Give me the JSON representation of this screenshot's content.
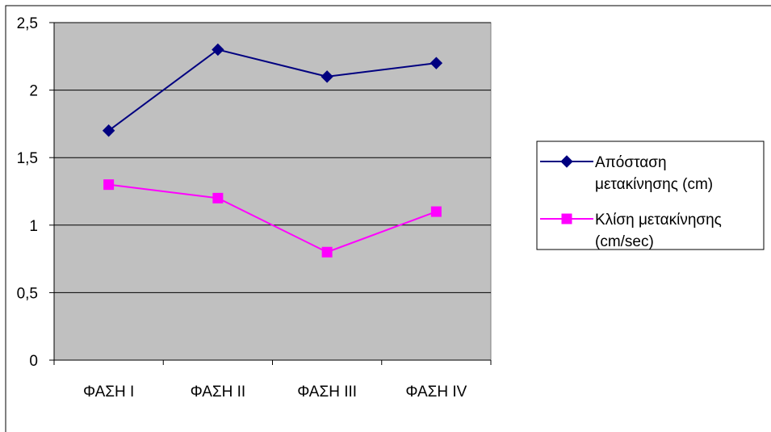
{
  "chart_data": {
    "type": "line",
    "categories": [
      "ΦΑΣΗ I",
      "ΦΑΣΗ II",
      "ΦΑΣΗ III",
      "ΦΑΣΗ IV"
    ],
    "series": [
      {
        "name": "Απόσταση μετακίνησης (cm)",
        "name_lines": [
          "Απόσταση",
          "μετακίνησης (cm)"
        ],
        "values": [
          1.7,
          2.3,
          2.1,
          2.2
        ],
        "color": "#000080",
        "marker": "diamond"
      },
      {
        "name": "Κλίση μετακίνησης (cm/sec)",
        "name_lines": [
          "Κλίση μετακίνησης",
          "(cm/sec)"
        ],
        "values": [
          1.3,
          1.2,
          0.8,
          1.1
        ],
        "color": "#FF00FF",
        "marker": "square"
      }
    ],
    "yticks": [
      "0",
      "0,5",
      "1",
      "1,5",
      "2",
      "2,5"
    ],
    "ytick_values": [
      0,
      0.5,
      1,
      1.5,
      2,
      2.5
    ],
    "ylim": [
      0,
      2.5
    ],
    "title": "",
    "xlabel": "",
    "ylabel": "",
    "grid": "horizontal",
    "plot_background": "#C0C0C0",
    "legend": "right"
  }
}
